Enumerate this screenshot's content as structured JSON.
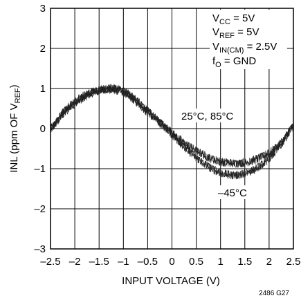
{
  "chart_data": {
    "type": "line",
    "xlabel": "INPUT VOLTAGE (V)",
    "ylabel": {
      "main": "INL (ppm OF V",
      "sub": "REF",
      "close": ")"
    },
    "xlim": [
      -2.5,
      2.5
    ],
    "ylim": [
      -3,
      3
    ],
    "x_ticks": [
      -2.5,
      -2,
      -1.5,
      -1,
      -0.5,
      0,
      0.5,
      1,
      1.5,
      2,
      2.5
    ],
    "x_tick_labels": [
      "–2.5",
      "–2",
      "–1.5",
      "–1",
      "–0.5",
      "0",
      "0.5",
      "1",
      "1.5",
      "2",
      "2.5"
    ],
    "y_ticks": [
      -3,
      -2,
      -1,
      0,
      1,
      2,
      3
    ],
    "y_tick_labels": [
      "–3",
      "–2",
      "–1",
      "0",
      "1",
      "2",
      "3"
    ],
    "grid": true,
    "series": [
      {
        "x": [
          -2.5,
          -2.25,
          -2.0,
          -1.75,
          -1.5,
          -1.25,
          -1.0,
          -0.75,
          -0.5,
          -0.25,
          0.0,
          0.25,
          0.5,
          0.75,
          1.0,
          1.25,
          1.5,
          1.75,
          2.0,
          2.25,
          2.5
        ],
        "values": [
          0.0,
          0.4,
          0.68,
          0.86,
          0.96,
          0.98,
          0.9,
          0.68,
          0.4,
          0.15,
          -0.1,
          -0.35,
          -0.55,
          -0.72,
          -0.82,
          -0.86,
          -0.85,
          -0.76,
          -0.6,
          -0.35,
          0.05
        ]
      },
      {
        "x": [
          -2.5,
          -2.25,
          -2.0,
          -1.75,
          -1.5,
          -1.25,
          -1.0,
          -0.75,
          -0.5,
          -0.25,
          0.0,
          0.25,
          0.5,
          0.75,
          1.0,
          1.25,
          1.5,
          1.75,
          2.0,
          2.25,
          2.5
        ],
        "values": [
          0.0,
          0.36,
          0.62,
          0.82,
          0.95,
          1.0,
          0.93,
          0.72,
          0.44,
          0.16,
          -0.15,
          -0.45,
          -0.72,
          -0.95,
          -1.1,
          -1.16,
          -1.12,
          -0.98,
          -0.74,
          -0.4,
          0.05
        ]
      }
    ],
    "annotations": {
      "conditions": [
        {
          "main": "V",
          "sub": "CC",
          "rest": " = 5V"
        },
        {
          "main": "V",
          "sub": "REF",
          "rest": " = 5V"
        },
        {
          "main": "V",
          "sub": "IN(CM)",
          "rest": " = 2.5V"
        },
        {
          "main": "f",
          "sub": "O",
          "rest": " = GND"
        }
      ],
      "label_upper": "25°C, 85°C",
      "label_lower": "–45°C"
    },
    "figure_code": "2486 G27"
  },
  "colors": {
    "trace": "#222222",
    "grid": "#000000",
    "background": "#ffffff"
  }
}
